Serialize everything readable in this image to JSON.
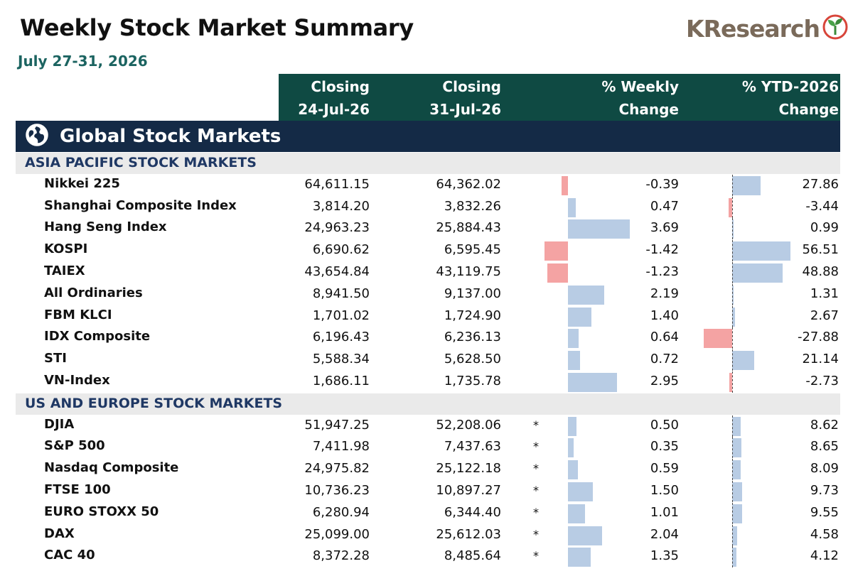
{
  "title": "Weekly Stock Market Summary",
  "subtitle": "July 27-31, 2026",
  "logo": {
    "k": "K",
    "text": "Research",
    "icon": "sprout-icon"
  },
  "header": {
    "col1_line1": "Closing",
    "col1_line2": "24-Jul-26",
    "col2_line1": "Closing",
    "col2_line2": "31-Jul-26",
    "col3_line1": "% Weekly",
    "col3_line2": "Change",
    "col4_line1": "% YTD-2026",
    "col4_line2": "Change"
  },
  "band": {
    "title": "Global Stock Markets",
    "icon": "globe-icon"
  },
  "colors": {
    "header": "#0f4a43",
    "band": "#142a46",
    "positive_bar": "#b8cce4",
    "negative_bar": "#f4a3a3",
    "subtitle": "#1c6461"
  },
  "sections": [
    {
      "title": "ASIA PACIFIC STOCK MARKETS",
      "rows": [
        {
          "name": "Nikkei 225",
          "close_prev": "64,611.15",
          "close_curr": "64,362.02",
          "star": "",
          "weekly": -0.39,
          "weekly_text": "-0.39",
          "ytd": 27.86,
          "ytd_text": "27.86"
        },
        {
          "name": "Shanghai Composite Index",
          "close_prev": "3,814.20",
          "close_curr": "3,832.26",
          "star": "",
          "weekly": 0.47,
          "weekly_text": "0.47",
          "ytd": -3.44,
          "ytd_text": "-3.44"
        },
        {
          "name": "Hang Seng Index",
          "close_prev": "24,963.23",
          "close_curr": "25,884.43",
          "star": "",
          "weekly": 3.69,
          "weekly_text": "3.69",
          "ytd": 0.99,
          "ytd_text": "0.99"
        },
        {
          "name": "KOSPI",
          "close_prev": "6,690.62",
          "close_curr": "6,595.45",
          "star": "",
          "weekly": -1.42,
          "weekly_text": "-1.42",
          "ytd": 56.51,
          "ytd_text": "56.51"
        },
        {
          "name": "TAIEX",
          "close_prev": "43,654.84",
          "close_curr": "43,119.75",
          "star": "",
          "weekly": -1.23,
          "weekly_text": "-1.23",
          "ytd": 48.88,
          "ytd_text": "48.88"
        },
        {
          "name": "All Ordinaries",
          "close_prev": "8,941.50",
          "close_curr": "9,137.00",
          "star": "",
          "weekly": 2.19,
          "weekly_text": "2.19",
          "ytd": 1.31,
          "ytd_text": "1.31"
        },
        {
          "name": "FBM KLCI",
          "close_prev": "1,701.02",
          "close_curr": "1,724.90",
          "star": "",
          "weekly": 1.4,
          "weekly_text": "1.40",
          "ytd": 2.67,
          "ytd_text": "2.67"
        },
        {
          "name": "IDX Composite",
          "close_prev": "6,196.43",
          "close_curr": "6,236.13",
          "star": "",
          "weekly": 0.64,
          "weekly_text": "0.64",
          "ytd": -27.88,
          "ytd_text": "-27.88"
        },
        {
          "name": "STI",
          "close_prev": "5,588.34",
          "close_curr": "5,628.50",
          "star": "",
          "weekly": 0.72,
          "weekly_text": "0.72",
          "ytd": 21.14,
          "ytd_text": "21.14"
        },
        {
          "name": "VN-Index",
          "close_prev": "1,686.11",
          "close_curr": "1,735.78",
          "star": "",
          "weekly": 2.95,
          "weekly_text": "2.95",
          "ytd": -2.73,
          "ytd_text": "-2.73"
        }
      ]
    },
    {
      "title": "US AND EUROPE STOCK MARKETS",
      "rows": [
        {
          "name": "DJIA",
          "close_prev": "51,947.25",
          "close_curr": "52,208.06",
          "star": "*",
          "weekly": 0.5,
          "weekly_text": "0.50",
          "ytd": 8.62,
          "ytd_text": "8.62"
        },
        {
          "name": "S&P 500",
          "close_prev": "7,411.98",
          "close_curr": "7,437.63",
          "star": "*",
          "weekly": 0.35,
          "weekly_text": "0.35",
          "ytd": 8.65,
          "ytd_text": "8.65"
        },
        {
          "name": "Nasdaq Composite",
          "close_prev": "24,975.82",
          "close_curr": "25,122.18",
          "star": "*",
          "weekly": 0.59,
          "weekly_text": "0.59",
          "ytd": 8.09,
          "ytd_text": "8.09"
        },
        {
          "name": "FTSE 100",
          "close_prev": "10,736.23",
          "close_curr": "10,897.27",
          "star": "*",
          "weekly": 1.5,
          "weekly_text": "1.50",
          "ytd": 9.73,
          "ytd_text": "9.73"
        },
        {
          "name": "EURO STOXX 50",
          "close_prev": "6,280.94",
          "close_curr": "6,344.40",
          "star": "*",
          "weekly": 1.01,
          "weekly_text": "1.01",
          "ytd": 9.55,
          "ytd_text": "9.55"
        },
        {
          "name": "DAX",
          "close_prev": "25,099.00",
          "close_curr": "25,612.03",
          "star": "*",
          "weekly": 2.04,
          "weekly_text": "2.04",
          "ytd": 4.58,
          "ytd_text": "4.58"
        },
        {
          "name": "CAC 40",
          "close_prev": "8,372.28",
          "close_curr": "8,485.64",
          "star": "*",
          "weekly": 1.35,
          "weekly_text": "1.35",
          "ytd": 4.12,
          "ytd_text": "4.12"
        }
      ]
    }
  ]
}
